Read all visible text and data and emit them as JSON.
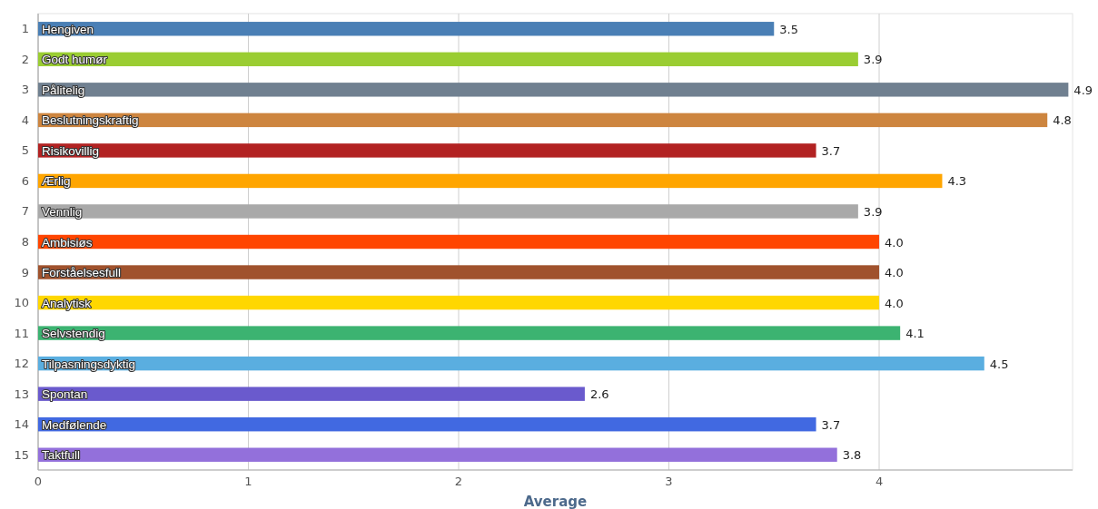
{
  "chart_data": {
    "type": "bar",
    "orientation": "horizontal",
    "xlabel": "Average",
    "categories": [
      "1",
      "2",
      "3",
      "4",
      "5",
      "6",
      "7",
      "8",
      "9",
      "10",
      "11",
      "12",
      "13",
      "14",
      "15"
    ],
    "values": [
      3.5,
      3.9,
      4.9,
      4.8,
      3.7,
      4.3,
      3.9,
      4.0,
      4.0,
      4.0,
      4.1,
      4.5,
      2.6,
      3.7,
      3.8
    ],
    "value_labels": [
      "3.5",
      "3.9",
      "4.9",
      "4.8",
      "3.7",
      "4.3",
      "3.9",
      "4.0",
      "4.0",
      "4.0",
      "4.1",
      "4.5",
      "2.6",
      "3.7",
      "3.8"
    ],
    "colors": [
      "#4a7fb5",
      "#9acd32",
      "#708090",
      "#cd853f",
      "#b22222",
      "#ffa500",
      "#a9a9a9",
      "#ff4500",
      "#a0522d",
      "#ffd700",
      "#3cb371",
      "#5aaee0",
      "#6a5acd",
      "#4169e1",
      "#9370db"
    ],
    "annotations": [
      "Hengiven",
      "Godt humør",
      "Pålitelig",
      "Beslutningskraftig",
      "Risikovillig",
      "Ærlig",
      "Vennlig",
      "Ambisiøs",
      "Forståelsesfull",
      "Analytisk",
      "Selvstendig",
      "Tilpasningsdyktig",
      "Spontan",
      "Medfølende",
      "Taktfull"
    ],
    "xlim": [
      0,
      4.92
    ],
    "xticks": [
      0,
      1,
      2,
      3,
      4
    ],
    "grid": "x"
  }
}
